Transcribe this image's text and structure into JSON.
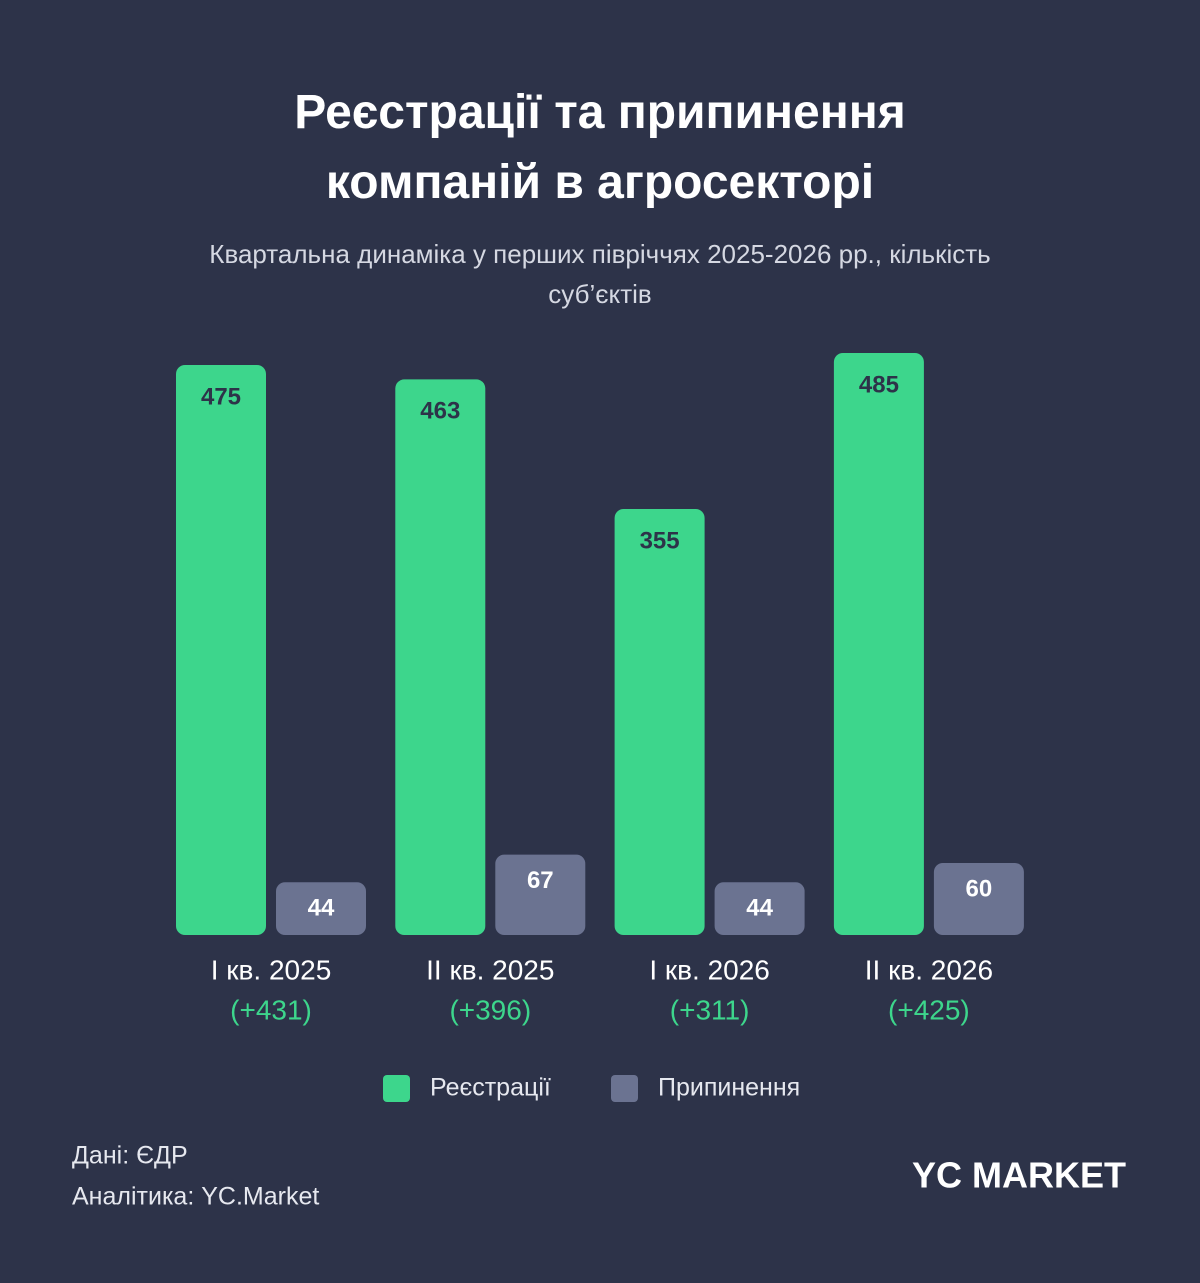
{
  "chart_data": {
    "type": "bar",
    "title": "Реєстрації та припинення компаній в агросекторі",
    "subtitle": "Квартальна динаміка у перших півріччях 2025-2026 рр., кількість суб’єктів",
    "categories": [
      "I кв. 2025",
      "II кв. 2025",
      "I кв. 2026",
      "II кв. 2026"
    ],
    "category_notes": [
      "(+431)",
      "(+396)",
      "(+311)",
      "(+425)"
    ],
    "series": [
      {
        "name": "Реєстрації",
        "color": "#3dd68c",
        "values": [
          475,
          463,
          355,
          485
        ]
      },
      {
        "name": "Припинення",
        "color": "#6b7391",
        "values": [
          44,
          67,
          44,
          60
        ]
      }
    ],
    "legend": "bottom"
  },
  "footer": {
    "source": "Дані: ЄДР",
    "analytics": "Аналітика: YC.Market",
    "logo": "YC MARKET"
  }
}
